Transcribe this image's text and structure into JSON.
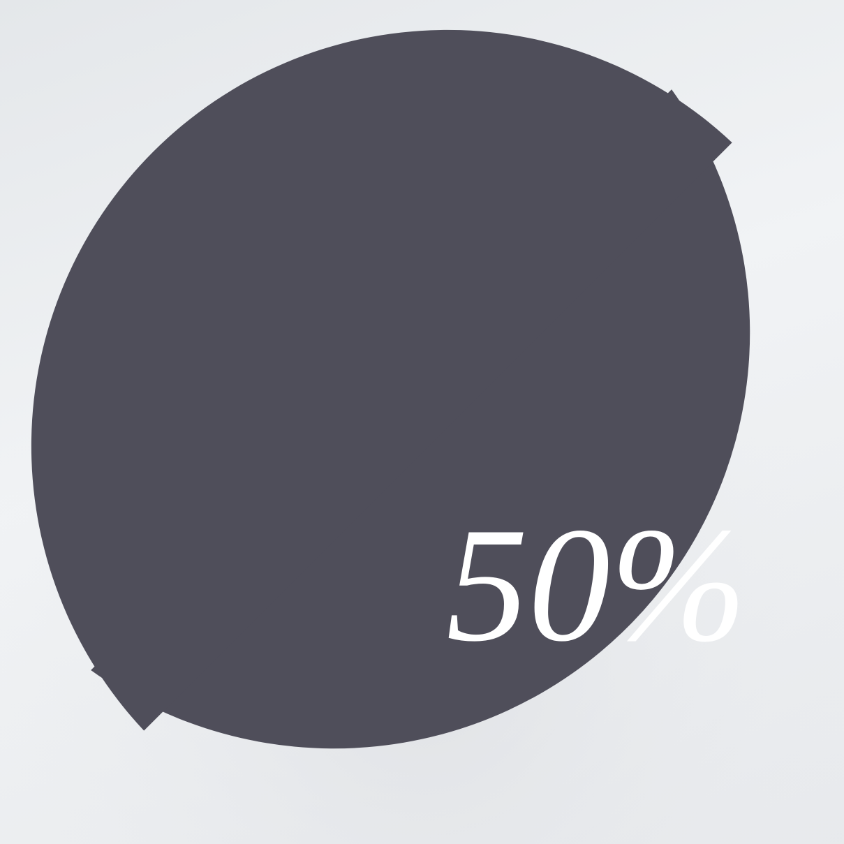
{
  "chart_data": {
    "type": "pie",
    "values": [
      50,
      50
    ],
    "value_labels": [
      "50%",
      "50%"
    ],
    "colors": [
      "#4f4e5a",
      "#4f4e5a"
    ],
    "label_color": "#ffffff"
  }
}
